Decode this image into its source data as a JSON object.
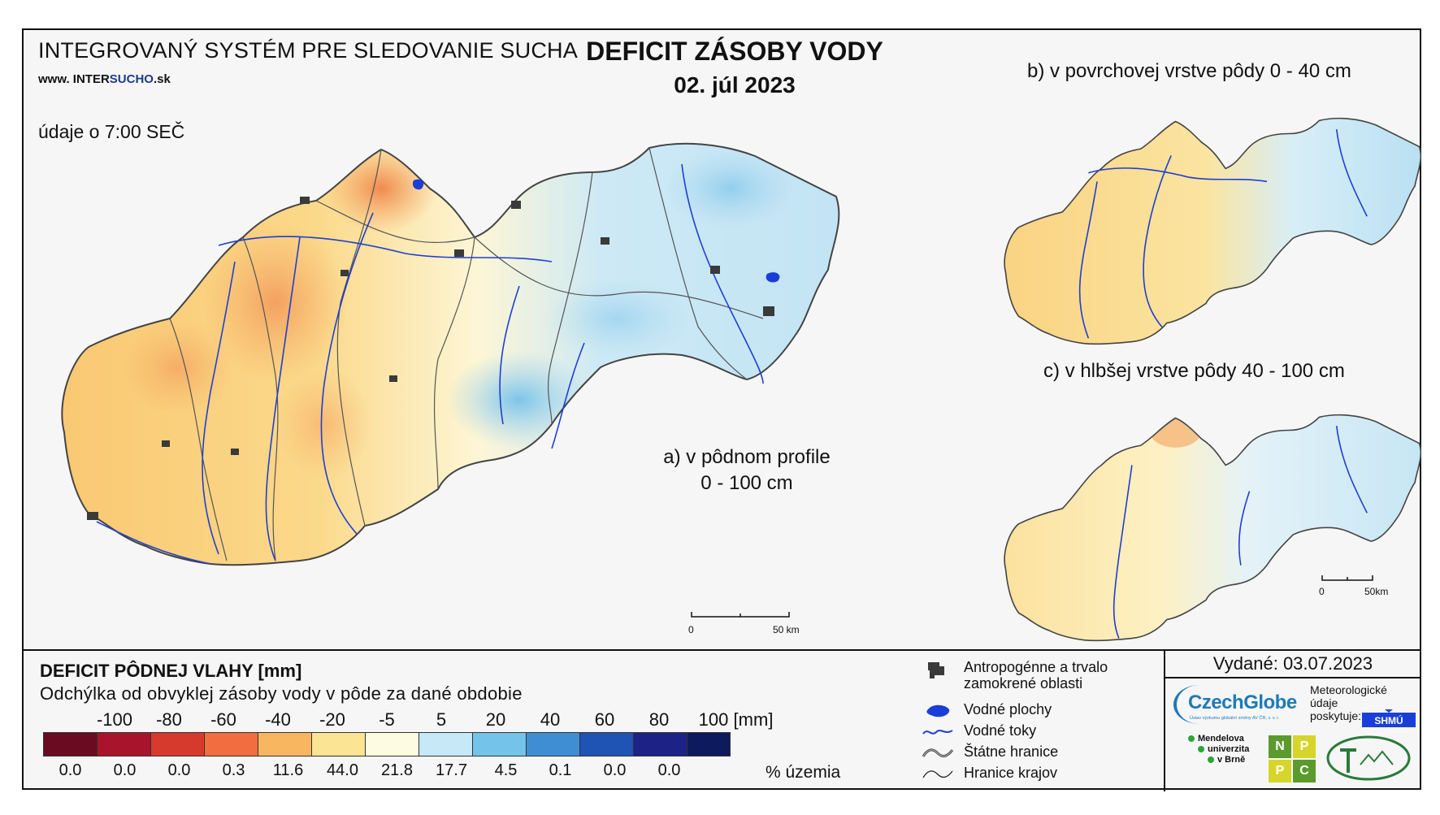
{
  "header": {
    "system_title": "INTEGROVANÝ SYSTÉM PRE SLEDOVANIE SUCHA",
    "website_prefix": "www. INTER",
    "website_highlight": "SUCHO",
    "website_suffix": ".sk",
    "time_note": "údaje o 7:00 SEČ",
    "main_title": "DEFICIT ZÁSOBY VODY",
    "main_date": "02. júl 2023"
  },
  "maps": {
    "a_label_line1": "a) v pôdnom profile",
    "a_label_line2": "0 - 100 cm",
    "b_label": "b) v povrchovej vrstve pôdy 0 - 40 cm",
    "c_label": "c) v hlbšej vrstve pôdy 40 - 100 cm",
    "scale_main": {
      "zero": "0",
      "end": "50 km"
    },
    "scale_small": {
      "zero": "0",
      "end": "50km"
    }
  },
  "legend": {
    "title": "DEFICIT PÔDNEJ VLAHY [mm]",
    "subtitle": "Odchýlka od obvyklej zásoby vody v pôde za dané obdobie",
    "ticks": [
      "-100",
      "-80",
      "-60",
      "-40",
      "-20",
      "-5",
      "5",
      "20",
      "40",
      "60",
      "80",
      "100"
    ],
    "unit": "[mm]",
    "colors": [
      "#6b0b22",
      "#a7142b",
      "#d63a2c",
      "#f26e3f",
      "#f9b661",
      "#fbe493",
      "#fdfbe2",
      "#c6e8f7",
      "#74c3ea",
      "#3f8ed3",
      "#1f53b4",
      "#1d2286",
      "#0e1a5e"
    ],
    "percentages": [
      "0.0",
      "0.0",
      "0.0",
      "0.3",
      "11.6",
      "44.0",
      "21.8",
      "17.7",
      "4.5",
      "0.1",
      "0.0",
      "0.0"
    ],
    "percent_label": "% územia"
  },
  "key": {
    "items": [
      {
        "icon": "urban-area-icon",
        "label": "Antropogénne a trvalo zamokrené oblasti"
      },
      {
        "icon": "water-body-icon",
        "label": "Vodné plochy"
      },
      {
        "icon": "river-icon",
        "label": "Vodné toky"
      },
      {
        "icon": "state-border-icon",
        "label": "Štátne hranice"
      },
      {
        "icon": "region-border-icon",
        "label": "Hranice krajov"
      }
    ]
  },
  "credits": {
    "issued": "Vydané: 03.07.2023",
    "czechglobe": "CzechGlobe",
    "czechglobe_sub": "Ústav výzkumu globální změny AV ČR, v. v. i.",
    "meteo_line1": "Meteorologické",
    "meteo_line2": "údaje",
    "meteo_line3": "poskytuje:",
    "shmu": "SHMÚ",
    "mendel_1": "Mendelova",
    "mendel_2": "univerzita",
    "mendel_3": "v Brně",
    "nppc": [
      "N",
      "P",
      "P",
      "C"
    ]
  }
}
